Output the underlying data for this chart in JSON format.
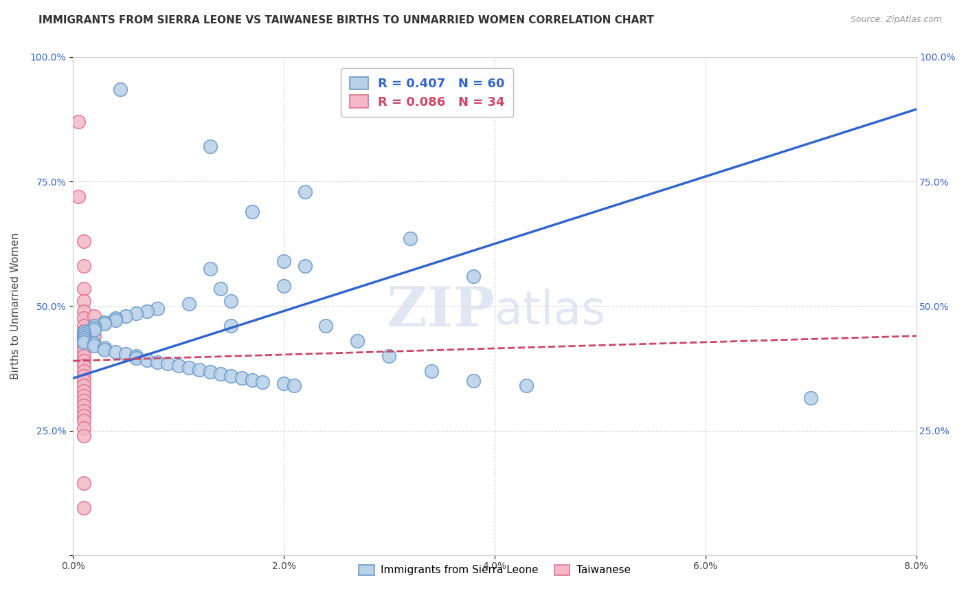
{
  "title": "IMMIGRANTS FROM SIERRA LEONE VS TAIWANESE BIRTHS TO UNMARRIED WOMEN CORRELATION CHART",
  "source": "Source: ZipAtlas.com",
  "ylabel": "Births to Unmarried Women",
  "legend_label_blue": "Immigrants from Sierra Leone",
  "legend_label_pink": "Taiwanese",
  "legend_r_blue": "R = 0.407",
  "legend_n_blue": "N = 60",
  "legend_r_pink": "R = 0.086",
  "legend_n_pink": "N = 34",
  "xlim": [
    0.0,
    0.08
  ],
  "ylim": [
    0.0,
    1.0
  ],
  "xticks": [
    0.0,
    0.02,
    0.04,
    0.06,
    0.08
  ],
  "xtick_labels": [
    "0.0%",
    "2.0%",
    "4.0%",
    "6.0%",
    "8.0%"
  ],
  "yticks": [
    0.0,
    0.25,
    0.5,
    0.75,
    1.0
  ],
  "ytick_labels": [
    "",
    "25.0%",
    "50.0%",
    "75.0%",
    "100.0%"
  ],
  "blue_scatter": [
    [
      0.0045,
      0.935
    ],
    [
      0.013,
      0.82
    ],
    [
      0.022,
      0.73
    ],
    [
      0.017,
      0.69
    ],
    [
      0.032,
      0.635
    ],
    [
      0.02,
      0.59
    ],
    [
      0.013,
      0.575
    ],
    [
      0.038,
      0.56
    ],
    [
      0.014,
      0.535
    ],
    [
      0.015,
      0.51
    ],
    [
      0.022,
      0.58
    ],
    [
      0.02,
      0.54
    ],
    [
      0.011,
      0.505
    ],
    [
      0.008,
      0.495
    ],
    [
      0.007,
      0.49
    ],
    [
      0.006,
      0.485
    ],
    [
      0.005,
      0.48
    ],
    [
      0.004,
      0.476
    ],
    [
      0.004,
      0.472
    ],
    [
      0.003,
      0.468
    ],
    [
      0.003,
      0.464
    ],
    [
      0.002,
      0.46
    ],
    [
      0.002,
      0.456
    ],
    [
      0.002,
      0.452
    ],
    [
      0.001,
      0.448
    ],
    [
      0.001,
      0.444
    ],
    [
      0.001,
      0.44
    ],
    [
      0.001,
      0.436
    ],
    [
      0.001,
      0.432
    ],
    [
      0.001,
      0.428
    ],
    [
      0.002,
      0.424
    ],
    [
      0.002,
      0.42
    ],
    [
      0.003,
      0.416
    ],
    [
      0.003,
      0.412
    ],
    [
      0.004,
      0.408
    ],
    [
      0.005,
      0.404
    ],
    [
      0.006,
      0.4
    ],
    [
      0.006,
      0.396
    ],
    [
      0.007,
      0.392
    ],
    [
      0.008,
      0.388
    ],
    [
      0.009,
      0.384
    ],
    [
      0.01,
      0.38
    ],
    [
      0.011,
      0.376
    ],
    [
      0.012,
      0.372
    ],
    [
      0.013,
      0.368
    ],
    [
      0.014,
      0.364
    ],
    [
      0.015,
      0.36
    ],
    [
      0.016,
      0.356
    ],
    [
      0.017,
      0.352
    ],
    [
      0.018,
      0.348
    ],
    [
      0.02,
      0.344
    ],
    [
      0.021,
      0.34
    ],
    [
      0.024,
      0.46
    ],
    [
      0.027,
      0.43
    ],
    [
      0.03,
      0.4
    ],
    [
      0.034,
      0.37
    ],
    [
      0.038,
      0.35
    ],
    [
      0.043,
      0.34
    ],
    [
      0.07,
      0.315
    ],
    [
      0.015,
      0.46
    ]
  ],
  "pink_scatter": [
    [
      0.0005,
      0.87
    ],
    [
      0.0005,
      0.72
    ],
    [
      0.001,
      0.63
    ],
    [
      0.001,
      0.58
    ],
    [
      0.001,
      0.535
    ],
    [
      0.001,
      0.51
    ],
    [
      0.001,
      0.49
    ],
    [
      0.001,
      0.475
    ],
    [
      0.001,
      0.46
    ],
    [
      0.001,
      0.45
    ],
    [
      0.001,
      0.44
    ],
    [
      0.001,
      0.43
    ],
    [
      0.001,
      0.42
    ],
    [
      0.001,
      0.41
    ],
    [
      0.001,
      0.4
    ],
    [
      0.001,
      0.39
    ],
    [
      0.001,
      0.38
    ],
    [
      0.001,
      0.37
    ],
    [
      0.001,
      0.36
    ],
    [
      0.001,
      0.35
    ],
    [
      0.001,
      0.34
    ],
    [
      0.001,
      0.33
    ],
    [
      0.001,
      0.32
    ],
    [
      0.001,
      0.31
    ],
    [
      0.001,
      0.3
    ],
    [
      0.001,
      0.29
    ],
    [
      0.001,
      0.28
    ],
    [
      0.001,
      0.27
    ],
    [
      0.001,
      0.255
    ],
    [
      0.001,
      0.24
    ],
    [
      0.001,
      0.145
    ],
    [
      0.001,
      0.095
    ],
    [
      0.002,
      0.48
    ],
    [
      0.002,
      0.44
    ]
  ],
  "blue_line_x": [
    0.0,
    0.08
  ],
  "blue_line_y": [
    0.355,
    0.895
  ],
  "pink_line_x": [
    0.0,
    0.08
  ],
  "pink_line_y": [
    0.39,
    0.44
  ],
  "watermark_zip": "ZIP",
  "watermark_atlas": "atlas",
  "bg_color": "#ffffff",
  "blue_color": "#b8d0e8",
  "blue_edge": "#6699cc",
  "pink_color": "#f4b8c8",
  "pink_edge": "#e07090",
  "blue_line_color": "#3366cc",
  "pink_line_color": "#cc4466",
  "title_fontsize": 11,
  "axis_label_fontsize": 11,
  "tick_fontsize": 10,
  "legend_fontsize": 13
}
